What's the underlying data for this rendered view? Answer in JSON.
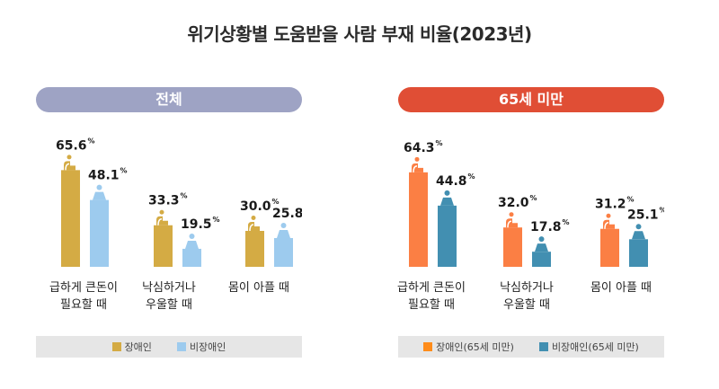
{
  "title": "위기상황별 도움받을 사람 부재 비율(2023년)",
  "chart_data": [
    {
      "type": "bar",
      "title": "전체",
      "header_color": "#9ea3c4",
      "categories": [
        "급하게 큰돈이\n필요할 때",
        "낙심하거나\n우울할 때",
        "몸이 아플 때"
      ],
      "series": [
        {
          "name": "장애인",
          "color": "#d4ab44",
          "icon": "wheelchair-person-icon",
          "values": [
            65.6,
            33.3,
            30.0
          ]
        },
        {
          "name": "비장애인",
          "color": "#9dcbee",
          "icon": "person-icon",
          "values": [
            48.1,
            19.5,
            25.8
          ]
        }
      ],
      "value_suffix": "%",
      "xlabel": "",
      "ylabel": "",
      "ylim": [
        0,
        70
      ],
      "grid": false,
      "legend": "bottom"
    },
    {
      "type": "bar",
      "title": "65세 미만",
      "header_color": "#e04e35",
      "categories": [
        "급하게 큰돈이\n필요할 때",
        "낙심하거나\n우울할 때",
        "몸이 아플 때"
      ],
      "series": [
        {
          "name": "장애인(65세 미만)",
          "color": "#fb7f44",
          "icon": "wheelchair-person-icon",
          "values": [
            64.3,
            32.0,
            31.2
          ]
        },
        {
          "name": "비장애인(65세 미만)",
          "color": "#428fb1",
          "icon": "person-icon",
          "values": [
            44.8,
            17.8,
            25.1
          ]
        }
      ],
      "value_suffix": "%",
      "xlabel": "",
      "ylabel": "",
      "ylim": [
        0,
        70
      ],
      "grid": false,
      "legend": "bottom"
    }
  ],
  "legend_colors": [
    [
      "#d4ab44",
      "#9dcbee"
    ],
    [
      "#ff8c1a",
      "#428fb1"
    ]
  ]
}
